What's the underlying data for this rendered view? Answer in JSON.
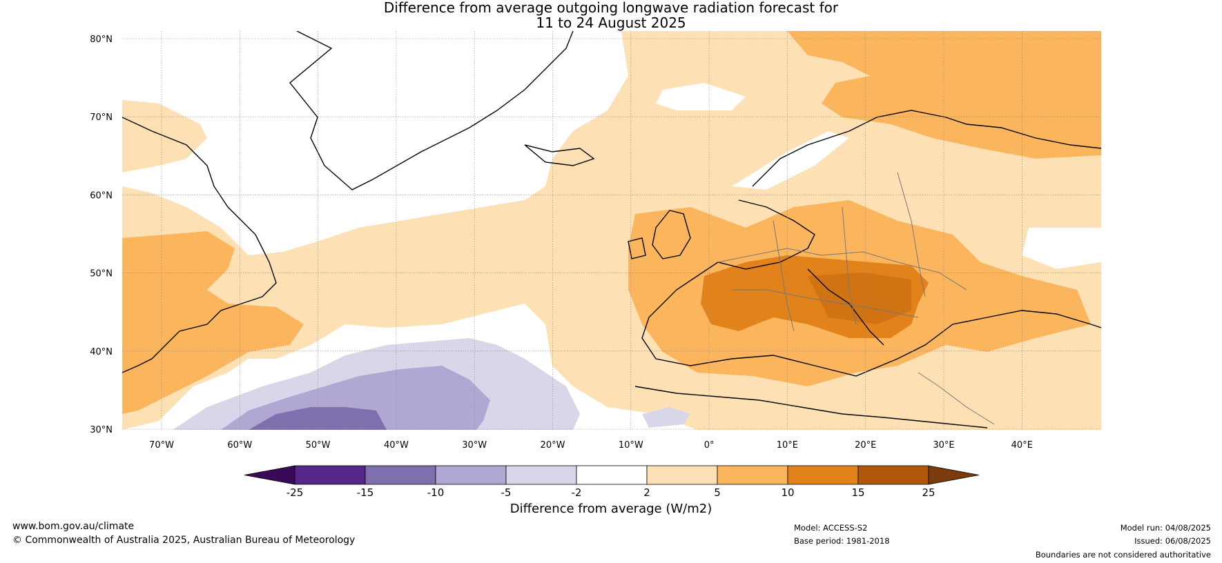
{
  "title_line1": "Difference from average outgoing longwave radiation forecast for",
  "title_line2": "11 to 24 August 2025",
  "lat_labels": [
    "80°N",
    "70°N",
    "60°N",
    "50°N",
    "40°N",
    "30°N"
  ],
  "lon_labels": [
    "70°W",
    "60°W",
    "50°W",
    "40°W",
    "30°W",
    "20°W",
    "10°W",
    "0°",
    "10°E",
    "20°E",
    "30°E",
    "40°E"
  ],
  "colorbar": {
    "ticks": [
      "-25",
      "-15",
      "-10",
      "-5",
      "-2",
      "2",
      "5",
      "10",
      "15",
      "25"
    ],
    "colors": [
      "#3b0a57",
      "#57268a",
      "#7f6fae",
      "#b0a8d2",
      "#d8d7ea",
      "#ffffff",
      "#fde0b4",
      "#fbb65d",
      "#e1821a",
      "#b0580a",
      "#7a3c0c"
    ],
    "label": "Difference from average (W/m2)"
  },
  "footer": {
    "url": "www.bom.gov.au/climate",
    "copyright": "© Commonwealth of Australia 2025, Australian Bureau of Meteorology",
    "model": "Model: ACCESS-S2",
    "base_period": "Base period: 1981-2018",
    "model_run": "Model run: 04/08/2025",
    "issued": "Issued: 06/08/2025",
    "disclaimer": "Boundaries are not considered authoritative"
  }
}
